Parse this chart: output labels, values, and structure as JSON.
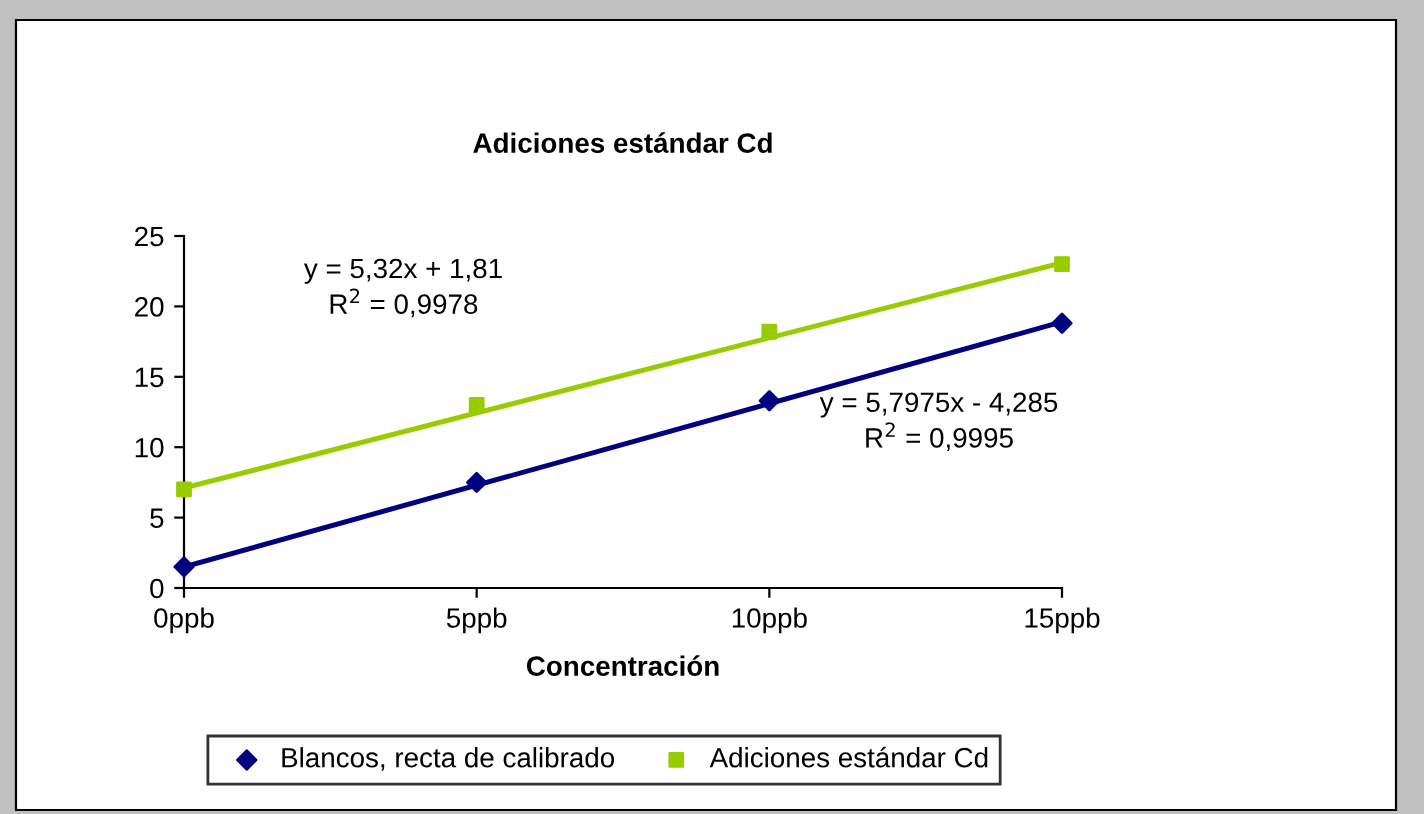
{
  "chart_data": {
    "type": "scatter",
    "title": "Adiciones estándar Cd",
    "xlabel": "Concentración",
    "xlim": [
      0,
      15
    ],
    "xticks": [
      {
        "value": 0,
        "label": "0ppb"
      },
      {
        "value": 5,
        "label": "5ppb"
      },
      {
        "value": 10,
        "label": "10ppb"
      },
      {
        "value": 15,
        "label": "15ppb"
      }
    ],
    "ylim": [
      0,
      25
    ],
    "yticks": [
      0,
      5,
      10,
      15,
      20,
      25
    ],
    "grid": false,
    "legend": "bottom",
    "series": [
      {
        "name": "Blancos, recta de calibrado",
        "color": "#000080",
        "marker": "diamond",
        "x": [
          0,
          5,
          10,
          15
        ],
        "values": [
          1.5,
          7.5,
          13.3,
          18.8
        ]
      },
      {
        "name": "Adiciones estándar Cd",
        "color": "#99cc00",
        "marker": "square",
        "x": [
          0,
          5,
          10,
          15
        ],
        "values": [
          7,
          13,
          18.2,
          23
        ]
      },
      {
        "type": "line",
        "color": "#000080",
        "marker": "none",
        "x": [
          0,
          15
        ],
        "values": [
          1.5,
          18.9
        ]
      },
      {
        "type": "line",
        "color": "#99cc00",
        "marker": "none",
        "x": [
          0,
          15
        ],
        "values": [
          7.1,
          23.1
        ]
      }
    ],
    "annotations": [
      "y = 5,32x + 1,81\nR$^{2}$ = 0,9978",
      "y = 5,7975x - 4,285\nR$^{2}$ = 0,9995"
    ]
  }
}
